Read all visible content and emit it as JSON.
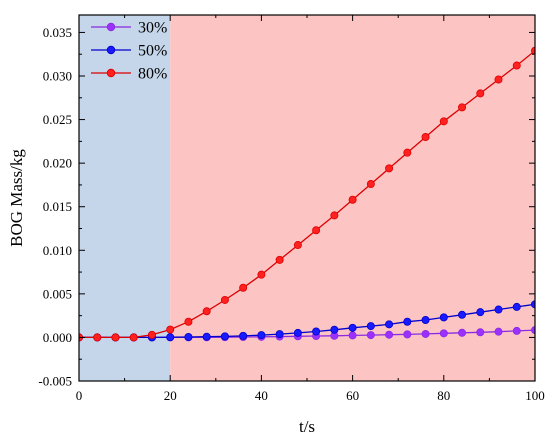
{
  "chart_data": {
    "type": "line",
    "xlabel": "t/s",
    "ylabel": "BOG Mass/kg",
    "xlim": [
      0,
      100
    ],
    "ylim": [
      -0.005,
      0.037
    ],
    "xticks": [
      0,
      20,
      40,
      60,
      80,
      100
    ],
    "yticks": [
      -0.005,
      0.0,
      0.005,
      0.01,
      0.015,
      0.02,
      0.025,
      0.03,
      0.035
    ],
    "ytick_labels": [
      "-0.005",
      "0.000",
      "0.005",
      "0.010",
      "0.015",
      "0.020",
      "0.025",
      "0.030",
      "0.035"
    ],
    "x_minor_ticks": [
      10,
      30,
      50,
      70,
      90
    ],
    "legend_position": "top-left",
    "grid": false,
    "shaded_regions": [
      {
        "x_range": [
          0,
          20
        ],
        "color": "#c5d6ea"
      },
      {
        "x_range": [
          20,
          100
        ],
        "color": "#fdc4c4"
      }
    ],
    "x": [
      0,
      4,
      8,
      12,
      16,
      20,
      24,
      28,
      32,
      36,
      40,
      44,
      48,
      52,
      56,
      60,
      64,
      68,
      72,
      76,
      80,
      84,
      88,
      92,
      96,
      100
    ],
    "series": [
      {
        "name": "30%",
        "color": "#8a2be2",
        "marker_color": "#9b30ff",
        "values": [
          0,
          0,
          0,
          0,
          0,
          0,
          1e-05,
          2e-05,
          3e-05,
          5e-05,
          7e-05,
          0.0001,
          0.00013,
          0.00016,
          0.00019,
          0.00023,
          0.00027,
          0.00031,
          0.00035,
          0.0004,
          0.00047,
          0.00053,
          0.00059,
          0.00066,
          0.00075,
          0.00084
        ]
      },
      {
        "name": "50%",
        "color": "#0000cc",
        "marker_color": "#1a1aff",
        "values": [
          0,
          0,
          0,
          0,
          0,
          3e-05,
          5e-05,
          8e-05,
          0.00012,
          0.00018,
          0.00027,
          0.00038,
          0.00052,
          0.00068,
          0.00088,
          0.0011,
          0.0013,
          0.0015,
          0.0018,
          0.002,
          0.0023,
          0.0026,
          0.0029,
          0.0032,
          0.0035,
          0.0038
        ]
      },
      {
        "name": "80%",
        "color": "#dd0000",
        "marker_color": "#ff2020",
        "values": [
          0,
          0,
          0,
          0,
          0.0003,
          0.0009,
          0.0018,
          0.003,
          0.0043,
          0.0057,
          0.0072,
          0.0089,
          0.0106,
          0.0123,
          0.014,
          0.0158,
          0.0176,
          0.0194,
          0.0212,
          0.023,
          0.0248,
          0.0264,
          0.028,
          0.0296,
          0.0312,
          0.0329
        ]
      }
    ]
  }
}
